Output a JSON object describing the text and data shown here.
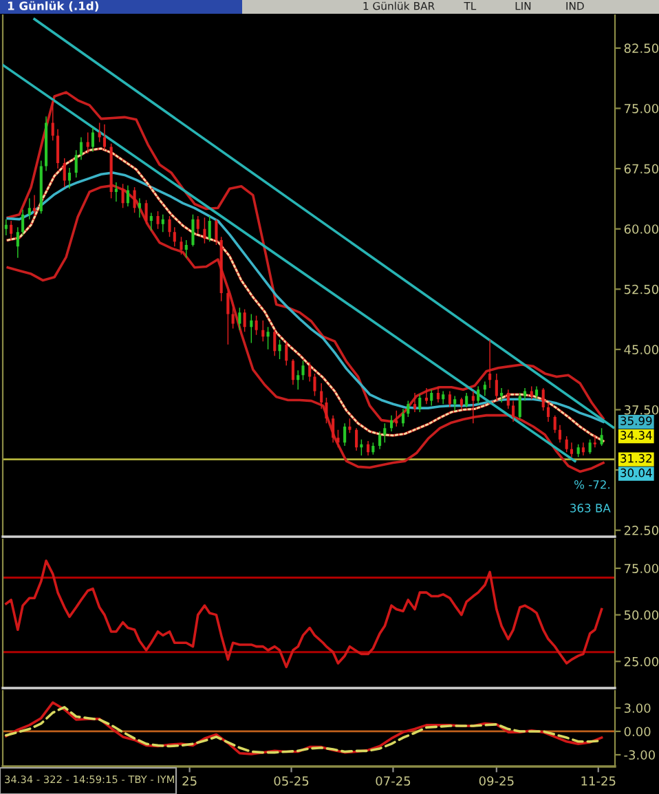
{
  "chart_data": [
    {
      "type": "candlestick",
      "title": "1 Günlük (.1d)",
      "x": [
        "2024-11-11",
        "2024-11-14",
        "2024-11-18",
        "2024-11-21",
        "2024-11-25",
        "2024-11-28",
        "2024-12-02",
        "2024-12-05",
        "2024-12-09",
        "2024-12-12",
        "2024-12-16",
        "2024-12-19",
        "2024-12-23",
        "2024-12-26",
        "2024-12-30",
        "2025-01-02",
        "2025-01-06",
        "2025-01-09",
        "2025-01-13",
        "2025-01-16",
        "2025-01-20",
        "2025-01-23",
        "2025-01-27",
        "2025-01-30",
        "2025-02-03",
        "2025-02-06",
        "2025-02-10",
        "2025-02-13",
        "2025-02-17",
        "2025-02-20",
        "2025-02-24",
        "2025-02-27",
        "2025-03-03",
        "2025-03-06",
        "2025-03-10",
        "2025-03-13",
        "2025-03-17",
        "2025-03-20",
        "2025-03-24",
        "2025-03-27",
        "2025-03-31",
        "2025-04-03",
        "2025-04-07",
        "2025-04-10",
        "2025-04-14",
        "2025-04-17",
        "2025-04-21",
        "2025-04-24",
        "2025-04-28",
        "2025-05-02",
        "2025-05-05",
        "2025-05-08",
        "2025-05-12",
        "2025-05-15",
        "2025-05-19",
        "2025-05-22",
        "2025-05-26",
        "2025-05-29",
        "2025-06-02",
        "2025-06-05",
        "2025-06-09",
        "2025-06-12",
        "2025-06-16",
        "2025-06-19",
        "2025-06-23",
        "2025-06-26",
        "2025-06-30",
        "2025-07-03",
        "2025-07-07",
        "2025-07-10",
        "2025-07-14",
        "2025-07-17",
        "2025-07-21",
        "2025-07-24",
        "2025-07-28",
        "2025-07-31",
        "2025-08-04",
        "2025-08-07",
        "2025-08-11",
        "2025-08-14",
        "2025-08-18",
        "2025-08-21",
        "2025-08-25",
        "2025-08-28",
        "2025-09-01",
        "2025-09-04",
        "2025-09-08",
        "2025-09-11",
        "2025-09-15",
        "2025-09-18",
        "2025-09-22",
        "2025-09-25",
        "2025-09-29",
        "2025-10-02",
        "2025-10-06",
        "2025-10-09",
        "2025-10-13",
        "2025-10-16",
        "2025-10-20",
        "2025-10-23",
        "2025-10-27",
        "2025-10-30",
        "2025-11-03"
      ],
      "ohlc": [
        [
          60.0,
          61.2,
          59.2,
          60.5
        ],
        [
          60.5,
          61.0,
          58.8,
          59.4
        ],
        [
          57.8,
          60.2,
          56.4,
          59.6
        ],
        [
          59.6,
          62.4,
          59.2,
          61.8
        ],
        [
          61.8,
          63.8,
          61.2,
          62.6
        ],
        [
          62.6,
          64.2,
          61.6,
          62.2
        ],
        [
          62.2,
          68.5,
          61.9,
          67.8
        ],
        [
          67.8,
          74.0,
          67.2,
          73.2
        ],
        [
          73.2,
          76.0,
          71.0,
          71.6
        ],
        [
          71.6,
          72.4,
          67.5,
          68.2
        ],
        [
          68.2,
          68.8,
          65.2,
          66.0
        ],
        [
          66.0,
          67.6,
          65.0,
          67.0
        ],
        [
          67.0,
          69.8,
          66.4,
          69.2
        ],
        [
          69.2,
          71.4,
          68.6,
          70.8
        ],
        [
          70.8,
          72.0,
          69.4,
          70.2
        ],
        [
          70.2,
          72.6,
          69.6,
          72.0
        ],
        [
          72.0,
          73.2,
          70.8,
          71.4
        ],
        [
          71.4,
          73.0,
          69.8,
          70.2
        ],
        [
          70.2,
          70.6,
          63.8,
          64.6
        ],
        [
          64.6,
          65.8,
          63.4,
          65.0
        ],
        [
          65.0,
          65.6,
          62.6,
          63.2
        ],
        [
          63.2,
          65.4,
          62.8,
          64.8
        ],
        [
          64.8,
          65.2,
          62.0,
          62.6
        ],
        [
          62.6,
          63.8,
          61.4,
          63.2
        ],
        [
          63.2,
          63.6,
          60.6,
          61.0
        ],
        [
          61.0,
          62.0,
          59.8,
          61.6
        ],
        [
          61.6,
          62.2,
          60.0,
          60.6
        ],
        [
          60.6,
          61.8,
          59.6,
          61.2
        ],
        [
          61.2,
          61.6,
          59.0,
          59.6
        ],
        [
          59.6,
          60.2,
          57.8,
          58.4
        ],
        [
          58.4,
          59.0,
          56.8,
          57.4
        ],
        [
          57.4,
          58.6,
          56.4,
          58.0
        ],
        [
          58.0,
          61.8,
          57.8,
          61.2
        ],
        [
          61.2,
          61.6,
          59.4,
          60.0
        ],
        [
          60.0,
          61.4,
          58.2,
          58.8
        ],
        [
          58.8,
          61.6,
          58.4,
          61.0
        ],
        [
          61.0,
          61.2,
          58.0,
          58.6
        ],
        [
          58.6,
          59.0,
          51.0,
          52.0
        ],
        [
          52.0,
          52.4,
          45.6,
          49.4
        ],
        [
          49.4,
          50.6,
          47.6,
          48.2
        ],
        [
          48.2,
          50.2,
          47.4,
          49.6
        ],
        [
          49.6,
          50.0,
          47.2,
          47.8
        ],
        [
          47.8,
          49.4,
          45.8,
          48.6
        ],
        [
          48.6,
          49.2,
          46.8,
          47.4
        ],
        [
          47.4,
          48.6,
          46.0,
          46.6
        ],
        [
          46.6,
          47.8,
          45.0,
          47.2
        ],
        [
          47.2,
          47.4,
          44.2,
          44.8
        ],
        [
          44.8,
          46.2,
          43.8,
          45.6
        ],
        [
          45.6,
          46.0,
          43.0,
          43.6
        ],
        [
          43.6,
          43.8,
          40.6,
          41.2
        ],
        [
          41.2,
          42.4,
          40.0,
          41.8
        ],
        [
          41.8,
          43.6,
          41.2,
          43.0
        ],
        [
          43.0,
          43.4,
          41.0,
          41.6
        ],
        [
          41.6,
          42.0,
          39.2,
          39.8
        ],
        [
          39.8,
          40.8,
          37.6,
          38.4
        ],
        [
          38.4,
          39.0,
          35.8,
          36.4
        ],
        [
          36.4,
          36.8,
          33.4,
          34.0
        ],
        [
          34.0,
          35.0,
          32.8,
          33.4
        ],
        [
          33.4,
          35.8,
          33.0,
          35.4
        ],
        [
          35.4,
          36.4,
          34.6,
          35.0
        ],
        [
          35.0,
          35.2,
          32.4,
          32.8
        ],
        [
          32.8,
          33.8,
          31.8,
          33.2
        ],
        [
          33.2,
          33.6,
          31.8,
          32.2
        ],
        [
          32.2,
          33.4,
          31.9,
          33.0
        ],
        [
          33.0,
          34.8,
          32.6,
          34.4
        ],
        [
          34.4,
          35.8,
          33.4,
          35.2
        ],
        [
          35.2,
          36.8,
          34.8,
          36.2
        ],
        [
          36.2,
          37.4,
          35.4,
          35.8
        ],
        [
          35.8,
          37.6,
          35.4,
          37.0
        ],
        [
          37.0,
          38.6,
          36.6,
          38.2
        ],
        [
          38.2,
          39.6,
          37.2,
          37.6
        ],
        [
          37.6,
          39.4,
          37.2,
          39.0
        ],
        [
          39.0,
          40.2,
          38.2,
          38.6
        ],
        [
          38.6,
          40.0,
          38.0,
          39.6
        ],
        [
          39.6,
          40.4,
          38.4,
          38.8
        ],
        [
          38.8,
          39.8,
          38.2,
          39.4
        ],
        [
          39.4,
          39.8,
          37.8,
          38.2
        ],
        [
          38.2,
          39.2,
          37.4,
          38.8
        ],
        [
          38.8,
          39.0,
          37.6,
          38.0
        ],
        [
          38.0,
          39.6,
          37.8,
          39.2
        ],
        [
          39.2,
          39.8,
          35.8,
          38.6
        ],
        [
          38.6,
          40.4,
          38.2,
          40.0
        ],
        [
          40.0,
          41.0,
          39.2,
          40.6
        ],
        [
          42.0,
          46.2,
          40.2,
          41.2
        ],
        [
          41.2,
          42.0,
          38.6,
          39.2
        ],
        [
          39.2,
          40.2,
          38.4,
          39.6
        ],
        [
          39.6,
          40.0,
          37.6,
          38.0
        ],
        [
          38.0,
          38.6,
          36.0,
          36.6
        ],
        [
          36.6,
          39.6,
          36.4,
          39.2
        ],
        [
          39.2,
          40.2,
          38.6,
          39.8
        ],
        [
          39.8,
          40.4,
          38.8,
          39.2
        ],
        [
          39.2,
          40.4,
          38.8,
          40.0
        ],
        [
          40.0,
          40.2,
          37.4,
          37.8
        ],
        [
          37.8,
          38.4,
          36.0,
          36.6
        ],
        [
          36.6,
          36.8,
          34.6,
          35.0
        ],
        [
          35.0,
          35.6,
          33.4,
          33.8
        ],
        [
          33.8,
          34.2,
          32.2,
          32.6
        ],
        [
          32.6,
          33.4,
          31.6,
          32.0
        ],
        [
          32.0,
          33.2,
          31.6,
          32.8
        ],
        [
          32.8,
          33.4,
          31.8,
          32.2
        ],
        [
          32.2,
          33.8,
          32.0,
          33.4
        ],
        [
          33.4,
          34.2,
          32.8,
          33.2
        ],
        [
          33.2,
          35.2,
          33.0,
          34.34
        ]
      ],
      "colors": [
        "#28c828",
        "#e01e1e",
        "#28c828",
        "#28c828",
        "#28c828",
        "#e01e1e",
        "#28c828",
        "#28c828",
        "#e01e1e",
        "#e01e1e",
        "#e01e1e",
        "#28c828",
        "#28c828",
        "#28c828",
        "#e01e1e",
        "#28c828",
        "#e01e1e",
        "#e01e1e",
        "#e01e1e",
        "#28c828",
        "#e01e1e",
        "#28c828",
        "#e01e1e",
        "#28c828",
        "#e01e1e",
        "#28c828",
        "#e01e1e",
        "#28c828",
        "#e01e1e",
        "#e01e1e",
        "#e01e1e",
        "#28c828",
        "#28c828",
        "#e01e1e",
        "#e01e1e",
        "#28c828",
        "#e01e1e",
        "#e01e1e",
        "#e01e1e",
        "#e01e1e",
        "#28c828",
        "#e01e1e",
        "#28c828",
        "#e01e1e",
        "#e01e1e",
        "#28c828",
        "#e01e1e",
        "#28c828",
        "#e01e1e",
        "#e01e1e",
        "#28c828",
        "#28c828",
        "#e01e1e",
        "#e01e1e",
        "#e01e1e",
        "#e01e1e",
        "#e01e1e",
        "#e01e1e",
        "#28c828",
        "#e01e1e",
        "#e01e1e",
        "#28c828",
        "#e01e1e",
        "#28c828",
        "#28c828",
        "#28c828",
        "#28c828",
        "#e01e1e",
        "#28c828",
        "#28c828",
        "#e01e1e",
        "#28c828",
        "#e01e1e",
        "#28c828",
        "#e01e1e",
        "#28c828",
        "#e01e1e",
        "#28c828",
        "#e01e1e",
        "#28c828",
        "#e01e1e",
        "#28c828",
        "#28c828",
        "#e01e1e",
        "#e01e1e",
        "#28c828",
        "#e01e1e",
        "#e01e1e",
        "#28c828",
        "#28c828",
        "#e01e1e",
        "#28c828",
        "#e01e1e",
        "#e01e1e",
        "#e01e1e",
        "#e01e1e",
        "#e01e1e",
        "#e01e1e",
        "#28c828",
        "#e01e1e",
        "#28c828",
        "#e01e1e",
        "#28c828"
      ],
      "value_labels": [
        null,
        null,
        null,
        null,
        null,
        null,
        null,
        null,
        null,
        null,
        null,
        null,
        null,
        null,
        null,
        null,
        null,
        null,
        null,
        null,
        null,
        null,
        null,
        null,
        null,
        null,
        null,
        null,
        null,
        null,
        null,
        null,
        null,
        null,
        null,
        null,
        null,
        null,
        null,
        null,
        null,
        null,
        null,
        null,
        null,
        null,
        null,
        null,
        null,
        null,
        null,
        null,
        null,
        null,
        null,
        null,
        null,
        null,
        null,
        null,
        null,
        null,
        null,
        null,
        null,
        null,
        null,
        null,
        null,
        null,
        null,
        null,
        null,
        null,
        null,
        null,
        null,
        null,
        null,
        null,
        null,
        null,
        null,
        null,
        null,
        null,
        null,
        null,
        null,
        null,
        null,
        null,
        null,
        null,
        null,
        null,
        null,
        null,
        null,
        null,
        null,
        null,
        "34.34"
      ],
      "series": [
        {
          "type": "line",
          "color": "#c81e1e",
          "x": [
            "2024-11-12",
            "2024-11-19",
            "2024-11-26",
            "2024-12-03",
            "2024-12-10",
            "2024-12-17",
            "2024-12-24",
            "2024-12-31",
            "2025-01-07",
            "2025-01-14",
            "2025-01-21",
            "2025-01-28",
            "2025-02-04",
            "2025-02-11",
            "2025-02-18",
            "2025-02-25",
            "2025-03-04",
            "2025-03-11",
            "2025-03-18",
            "2025-03-25",
            "2025-04-01",
            "2025-04-08",
            "2025-04-15",
            "2025-04-22",
            "2025-04-29",
            "2025-05-06",
            "2025-05-13",
            "2025-05-20",
            "2025-05-27",
            "2025-06-03",
            "2025-06-10",
            "2025-06-17",
            "2025-06-24",
            "2025-07-01",
            "2025-07-08",
            "2025-07-15",
            "2025-07-22",
            "2025-07-29",
            "2025-08-05",
            "2025-08-12",
            "2025-08-19",
            "2025-08-26",
            "2025-09-02",
            "2025-09-09",
            "2025-09-16",
            "2025-09-23",
            "2025-09-30",
            "2025-10-07",
            "2025-10-14",
            "2025-10-21",
            "2025-10-28",
            "2025-11-04"
          ],
          "values": [
            61.4,
            61.8,
            65.2,
            71.1,
            76.5,
            77.0,
            76.0,
            75.4,
            73.7,
            73.8,
            73.9,
            73.6,
            70.5,
            68.0,
            67.0,
            65.0,
            63.1,
            62.5,
            62.6,
            65.0,
            65.3,
            64.2,
            57.5,
            50.6,
            50.2,
            49.6,
            48.5,
            46.6,
            46.0,
            43.5,
            41.6,
            38.0,
            36.2,
            36.0,
            37.3,
            39.2,
            39.9,
            40.3,
            40.3,
            40.0,
            40.5,
            42.3,
            42.7,
            42.9,
            43.1,
            42.9,
            42.0,
            41.6,
            41.8,
            40.8,
            38.4,
            36.4
          ]
        },
        {
          "type": "line",
          "color": "#c81e1e",
          "x": [
            "2024-11-12",
            "2024-11-19",
            "2024-11-26",
            "2024-12-03",
            "2024-12-10",
            "2024-12-17",
            "2024-12-24",
            "2024-12-31",
            "2025-01-07",
            "2025-01-14",
            "2025-01-21",
            "2025-01-28",
            "2025-02-04",
            "2025-02-11",
            "2025-02-18",
            "2025-02-25",
            "2025-03-04",
            "2025-03-11",
            "2025-03-18",
            "2025-03-25",
            "2025-04-01",
            "2025-04-08",
            "2025-04-15",
            "2025-04-22",
            "2025-04-29",
            "2025-05-06",
            "2025-05-13",
            "2025-05-20",
            "2025-05-27",
            "2025-06-03",
            "2025-06-10",
            "2025-06-17",
            "2025-06-24",
            "2025-07-01",
            "2025-07-08",
            "2025-07-15",
            "2025-07-22",
            "2025-07-29",
            "2025-08-05",
            "2025-08-12",
            "2025-08-19",
            "2025-08-26",
            "2025-09-02",
            "2025-09-09",
            "2025-09-16",
            "2025-09-23",
            "2025-09-30",
            "2025-10-07",
            "2025-10-14",
            "2025-10-21",
            "2025-10-28",
            "2025-11-04"
          ],
          "values": [
            55.2,
            54.8,
            54.4,
            53.6,
            54.0,
            56.5,
            61.5,
            64.6,
            65.2,
            65.4,
            64.8,
            63.5,
            60.5,
            58.3,
            57.6,
            57.1,
            55.2,
            55.3,
            56.2,
            52.0,
            47.0,
            42.5,
            40.6,
            39.1,
            38.7,
            38.7,
            38.6,
            38.0,
            34.0,
            31.1,
            30.4,
            30.3,
            30.6,
            30.9,
            31.1,
            32.1,
            33.9,
            35.2,
            35.9,
            36.3,
            36.6,
            36.8,
            36.8,
            36.8,
            36.2,
            35.4,
            34.4,
            32.3,
            30.5,
            29.8,
            30.2,
            30.9
          ]
        },
        {
          "type": "line",
          "color": "#3cb4c8",
          "x": [
            "2024-11-12",
            "2024-11-19",
            "2024-11-26",
            "2024-12-03",
            "2024-12-10",
            "2024-12-17",
            "2024-12-24",
            "2024-12-31",
            "2025-01-07",
            "2025-01-14",
            "2025-01-21",
            "2025-01-28",
            "2025-02-04",
            "2025-02-11",
            "2025-02-18",
            "2025-02-25",
            "2025-03-04",
            "2025-03-11",
            "2025-03-18",
            "2025-03-25",
            "2025-04-01",
            "2025-04-08",
            "2025-04-15",
            "2025-04-22",
            "2025-04-29",
            "2025-05-06",
            "2025-05-13",
            "2025-05-20",
            "2025-05-27",
            "2025-06-03",
            "2025-06-10",
            "2025-06-17",
            "2025-06-24",
            "2025-07-01",
            "2025-07-08",
            "2025-07-15",
            "2025-07-22",
            "2025-07-29",
            "2025-08-05",
            "2025-08-12",
            "2025-08-19",
            "2025-08-26",
            "2025-09-02",
            "2025-09-09",
            "2025-09-16",
            "2025-09-23",
            "2025-09-30",
            "2025-10-07",
            "2025-10-14",
            "2025-10-21",
            "2025-10-28",
            "2025-11-04"
          ],
          "values": [
            61.3,
            61.2,
            61.9,
            63.1,
            64.3,
            65.2,
            65.8,
            66.3,
            66.8,
            67.0,
            66.7,
            66.1,
            65.4,
            64.7,
            64.0,
            63.2,
            62.6,
            61.8,
            61.0,
            59.3,
            57.4,
            55.5,
            53.6,
            51.7,
            50.2,
            48.8,
            47.5,
            46.4,
            44.6,
            42.6,
            41.0,
            39.4,
            38.7,
            38.2,
            37.8,
            37.7,
            37.7,
            37.9,
            38.0,
            38.0,
            38.1,
            38.4,
            38.7,
            38.8,
            38.8,
            38.8,
            38.6,
            38.3,
            37.8,
            37.1,
            36.6,
            35.99
          ],
          "value_labels": [
            null,
            null,
            null,
            null,
            null,
            null,
            null,
            null,
            null,
            null,
            null,
            null,
            null,
            null,
            null,
            null,
            null,
            null,
            null,
            null,
            null,
            null,
            null,
            null,
            null,
            null,
            null,
            null,
            null,
            null,
            null,
            null,
            null,
            null,
            null,
            null,
            null,
            null,
            null,
            null,
            null,
            null,
            null,
            null,
            null,
            null,
            null,
            null,
            null,
            null,
            null,
            "35.99"
          ]
        },
        {
          "type": "line",
          "color": "#dc2828",
          "x": [
            "2024-11-12",
            "2024-11-19",
            "2024-11-26",
            "2024-12-03",
            "2024-12-10",
            "2024-12-17",
            "2024-12-24",
            "2024-12-31",
            "2025-01-07",
            "2025-01-14",
            "2025-01-21",
            "2025-01-28",
            "2025-02-04",
            "2025-02-11",
            "2025-02-18",
            "2025-02-25",
            "2025-03-04",
            "2025-03-11",
            "2025-03-18",
            "2025-03-25",
            "2025-04-01",
            "2025-04-08",
            "2025-04-15",
            "2025-04-22",
            "2025-04-29",
            "2025-05-06",
            "2025-05-13",
            "2025-05-20",
            "2025-05-27",
            "2025-06-03",
            "2025-06-10",
            "2025-06-17",
            "2025-06-24",
            "2025-07-01",
            "2025-07-08",
            "2025-07-15",
            "2025-07-22",
            "2025-07-29",
            "2025-08-05",
            "2025-08-12",
            "2025-08-19",
            "2025-08-26",
            "2025-09-02",
            "2025-09-09",
            "2025-09-16",
            "2025-09-23",
            "2025-09-30",
            "2025-10-07",
            "2025-10-14",
            "2025-10-21",
            "2025-10-28",
            "2025-11-04"
          ],
          "values": [
            58.6,
            58.9,
            60.5,
            63.8,
            66.6,
            68.1,
            69.0,
            69.8,
            70.0,
            69.4,
            68.4,
            67.4,
            65.6,
            63.6,
            61.8,
            60.4,
            59.4,
            58.9,
            58.4,
            56.6,
            53.6,
            51.5,
            49.7,
            47.1,
            45.6,
            44.3,
            42.8,
            41.5,
            39.8,
            37.4,
            35.8,
            34.8,
            34.4,
            34.3,
            34.5,
            35.1,
            35.7,
            36.5,
            37.2,
            37.5,
            37.6,
            38.1,
            38.8,
            39.4,
            39.4,
            39.2,
            38.7,
            37.7,
            36.6,
            35.4,
            34.4,
            33.6
          ]
        },
        {
          "type": "line",
          "color": "#f0dca0",
          "line_style": "dotted",
          "x": [
            "2024-11-12",
            "2024-11-19",
            "2024-11-26",
            "2024-12-03",
            "2024-12-10",
            "2024-12-17",
            "2024-12-24",
            "2024-12-31",
            "2025-01-07",
            "2025-01-14",
            "2025-01-21",
            "2025-01-28",
            "2025-02-04",
            "2025-02-11",
            "2025-02-18",
            "2025-02-25",
            "2025-03-04",
            "2025-03-11",
            "2025-03-18",
            "2025-03-25",
            "2025-04-01",
            "2025-04-08",
            "2025-04-15",
            "2025-04-22",
            "2025-04-29",
            "2025-05-06",
            "2025-05-13",
            "2025-05-20",
            "2025-05-27",
            "2025-06-03",
            "2025-06-10",
            "2025-06-17",
            "2025-06-24",
            "2025-07-01",
            "2025-07-08",
            "2025-07-15",
            "2025-07-22",
            "2025-07-29",
            "2025-08-05",
            "2025-08-12",
            "2025-08-19",
            "2025-08-26",
            "2025-09-02",
            "2025-09-09",
            "2025-09-16",
            "2025-09-23",
            "2025-09-30",
            "2025-10-07",
            "2025-10-14",
            "2025-10-21",
            "2025-10-28",
            "2025-11-04"
          ],
          "values": [
            58.6,
            58.9,
            60.5,
            63.8,
            66.6,
            68.1,
            69.0,
            69.8,
            70.0,
            69.4,
            68.4,
            67.4,
            65.6,
            63.6,
            61.8,
            60.4,
            59.4,
            58.9,
            58.4,
            56.6,
            53.6,
            51.5,
            49.7,
            47.1,
            45.6,
            44.3,
            42.8,
            41.5,
            39.8,
            37.4,
            35.8,
            34.8,
            34.4,
            34.3,
            34.5,
            35.1,
            35.7,
            36.5,
            37.2,
            37.5,
            37.6,
            38.1,
            38.8,
            39.4,
            39.4,
            39.2,
            38.7,
            37.7,
            36.6,
            35.4,
            34.4,
            33.6
          ]
        },
        {
          "type": "line",
          "color": "#28b4b4",
          "x": [
            "2024-11-28",
            "2025-11-10"
          ],
          "values": [
            86.1,
            35.3
          ]
        },
        {
          "type": "line",
          "color": "#28b4b4",
          "x": [
            "2024-11-09",
            "2025-10-18"
          ],
          "values": [
            80.4,
            31.1
          ]
        }
      ],
      "xlim": [
        "2024-11-09",
        "2025-11-11"
      ],
      "ylim": [
        21.7,
        86.6
      ],
      "yticks": [
        {
          "value": 82.5,
          "label": "82.50"
        },
        {
          "value": 75,
          "label": "75.00"
        },
        {
          "value": 67.5,
          "label": "67.50"
        },
        {
          "value": 60,
          "label": "60.00"
        },
        {
          "value": 52.5,
          "label": "52.50"
        },
        {
          "value": 45,
          "label": "45.00"
        },
        {
          "value": 37.5,
          "label": "37.50"
        },
        {
          "value": 30,
          "label": null
        },
        {
          "value": 22.5,
          "label": "22.50"
        }
      ],
      "tick_labels": "y",
      "ref_lines": [
        {
          "axis": "y",
          "value": 31.32,
          "label": "31.32",
          "color": "#b4b43c"
        }
      ],
      "annotations": [
        "1 Günlük",
        "BAR",
        "TL",
        "LIN",
        "IND",
        "30.04",
        "% -72.",
        "363 BA"
      ]
    },
    {
      "type": "line",
      "x": [
        "2024-11-11",
        "2024-11-14",
        "2024-11-18",
        "2024-11-21",
        "2024-11-25",
        "2024-11-28",
        "2024-12-02",
        "2024-12-05",
        "2024-12-09",
        "2024-12-12",
        "2024-12-16",
        "2024-12-19",
        "2024-12-23",
        "2024-12-26",
        "2024-12-30",
        "2025-01-02",
        "2025-01-06",
        "2025-01-09",
        "2025-01-13",
        "2025-01-16",
        "2025-01-20",
        "2025-01-23",
        "2025-01-27",
        "2025-01-30",
        "2025-02-03",
        "2025-02-06",
        "2025-02-10",
        "2025-02-13",
        "2025-02-17",
        "2025-02-20",
        "2025-02-24",
        "2025-02-27",
        "2025-03-03",
        "2025-03-06",
        "2025-03-10",
        "2025-03-13",
        "2025-03-17",
        "2025-03-20",
        "2025-03-24",
        "2025-03-27",
        "2025-03-31",
        "2025-04-03",
        "2025-04-07",
        "2025-04-10",
        "2025-04-14",
        "2025-04-17",
        "2025-04-21",
        "2025-04-24",
        "2025-04-28",
        "2025-05-02",
        "2025-05-05",
        "2025-05-08",
        "2025-05-12",
        "2025-05-15",
        "2025-05-20",
        "2025-05-22",
        "2025-05-26",
        "2025-05-29",
        "2025-06-02",
        "2025-06-05",
        "2025-06-10",
        "2025-06-12",
        "2025-06-16",
        "2025-06-19",
        "2025-06-23",
        "2025-06-26",
        "2025-06-30",
        "2025-07-03",
        "2025-07-07",
        "2025-07-10",
        "2025-07-14",
        "2025-07-17",
        "2025-07-21",
        "2025-07-24",
        "2025-07-28",
        "2025-07-31",
        "2025-08-04",
        "2025-08-07",
        "2025-08-11",
        "2025-08-14",
        "2025-08-18",
        "2025-08-21",
        "2025-08-25",
        "2025-08-28",
        "2025-09-01",
        "2025-09-04",
        "2025-09-08",
        "2025-09-11",
        "2025-09-15",
        "2025-09-18",
        "2025-09-22",
        "2025-09-25",
        "2025-09-29",
        "2025-10-02",
        "2025-10-06",
        "2025-10-09",
        "2025-10-13",
        "2025-10-16",
        "2025-10-20",
        "2025-10-23",
        "2025-10-27",
        "2025-10-30",
        "2025-11-03"
      ],
      "series": [
        {
          "color": "#d01818",
          "values": [
            56,
            58,
            42,
            55,
            59,
            59,
            68,
            79,
            72,
            62,
            54,
            49,
            54,
            58,
            63,
            64,
            54,
            50,
            41,
            41,
            46,
            43,
            42,
            36,
            31,
            35,
            41,
            39,
            41,
            35,
            35,
            35,
            33,
            50,
            55,
            51,
            50,
            39,
            26,
            35,
            34,
            34,
            34,
            33,
            33,
            31,
            33,
            31,
            22,
            31,
            33,
            39,
            43,
            39,
            35,
            33,
            30,
            24,
            28,
            33,
            30,
            29,
            29,
            32,
            40,
            44,
            55,
            53,
            52,
            58,
            53,
            62,
            62,
            60,
            60,
            61,
            59,
            55,
            50,
            57,
            60,
            62,
            66,
            73,
            53,
            44,
            37,
            42,
            54,
            55,
            53,
            51,
            42,
            37,
            33,
            29,
            24,
            26,
            28,
            29,
            40,
            42,
            53
          ]
        }
      ],
      "xlim": [
        "2024-11-09",
        "2025-11-11"
      ],
      "ylim": [
        10.7,
        90.5
      ],
      "yticks": [
        {
          "value": 75,
          "label": "75.00"
        },
        {
          "value": 50,
          "label": "50.00"
        },
        {
          "value": 25,
          "label": "25.00"
        }
      ],
      "tick_labels": "y",
      "ref_lines": [
        {
          "axis": "y",
          "value": 70,
          "color": "#b00000"
        },
        {
          "axis": "y",
          "value": 30,
          "color": "#b00000"
        }
      ]
    },
    {
      "type": "line",
      "x": [
        "2024-11-11",
        "2024-11-18",
        "2024-11-25",
        "2024-12-02",
        "2024-12-09",
        "2024-12-16",
        "2024-12-23",
        "2024-12-30",
        "2025-01-06",
        "2025-01-13",
        "2025-01-20",
        "2025-01-27",
        "2025-02-03",
        "2025-02-10",
        "2025-02-17",
        "2025-02-24",
        "2025-03-03",
        "2025-03-10",
        "2025-03-17",
        "2025-03-24",
        "2025-03-31",
        "2025-04-07",
        "2025-04-14",
        "2025-04-21",
        "2025-04-28",
        "2025-05-05",
        "2025-05-12",
        "2025-05-19",
        "2025-05-26",
        "2025-06-02",
        "2025-06-09",
        "2025-06-16",
        "2025-06-23",
        "2025-06-30",
        "2025-07-07",
        "2025-07-14",
        "2025-07-21",
        "2025-07-28",
        "2025-08-04",
        "2025-08-11",
        "2025-08-18",
        "2025-08-25",
        "2025-09-01",
        "2025-09-08",
        "2025-09-15",
        "2025-09-22",
        "2025-09-29",
        "2025-10-06",
        "2025-10-13",
        "2025-10-20",
        "2025-10-27",
        "2025-11-03"
      ],
      "series": [
        {
          "color": "#d01818",
          "values": [
            -0.6,
            0.2,
            0.8,
            1.7,
            3.7,
            2.8,
            1.5,
            1.6,
            1.6,
            0.4,
            -0.7,
            -1.1,
            -1.8,
            -1.9,
            -1.7,
            -1.6,
            -1.8,
            -0.9,
            -0.4,
            -1.5,
            -2.8,
            -2.9,
            -2.7,
            -2.5,
            -2.6,
            -2.6,
            -2.0,
            -2.0,
            -2.4,
            -2.7,
            -2.6,
            -2.4,
            -1.9,
            -0.9,
            -0.1,
            0.3,
            0.8,
            0.8,
            0.8,
            0.7,
            0.7,
            1.0,
            0.9,
            -0.1,
            -0.1,
            0.1,
            -0.1,
            -0.7,
            -1.3,
            -1.6,
            -1.4,
            -0.8
          ]
        },
        {
          "color": "#d8d860",
          "line_style": "dashed",
          "values": [
            -0.5,
            -0.1,
            0.3,
            1.0,
            2.4,
            3.1,
            1.9,
            1.7,
            1.5,
            0.8,
            -0.1,
            -0.9,
            -1.6,
            -1.8,
            -1.9,
            -1.8,
            -1.6,
            -1.2,
            -0.7,
            -1.4,
            -2.1,
            -2.6,
            -2.7,
            -2.7,
            -2.6,
            -2.5,
            -2.2,
            -2.1,
            -2.3,
            -2.6,
            -2.5,
            -2.5,
            -2.2,
            -1.6,
            -0.8,
            -0.2,
            0.5,
            0.6,
            0.7,
            0.7,
            0.7,
            0.8,
            0.9,
            0.3,
            0.0,
            0.0,
            0.0,
            -0.4,
            -0.8,
            -1.3,
            -1.3,
            -1.2
          ]
        }
      ],
      "xlim": [
        "2024-11-09",
        "2025-11-11"
      ],
      "ylim": [
        -4.5,
        5.2
      ],
      "xticks": [
        {
          "value": "2025-03-01",
          "label": "25"
        },
        {
          "value": "2025-05-01",
          "label": "05-25"
        },
        {
          "value": "2025-07-01",
          "label": "07-25"
        },
        {
          "value": "2025-09-01",
          "label": "09-25"
        },
        {
          "value": "2025-11-01",
          "label": "11-25"
        }
      ],
      "yticks": [
        {
          "value": 3,
          "label": "3.00"
        },
        {
          "value": 0,
          "label": "0.00"
        },
        {
          "value": -3,
          "label": "-3.00"
        }
      ],
      "ref_lines": [
        {
          "axis": "y",
          "value": 0,
          "color": "#c0601c"
        }
      ],
      "annotations": [
        "34.34 - 322 - 14:59:15 - TBY - IYM"
      ]
    }
  ]
}
